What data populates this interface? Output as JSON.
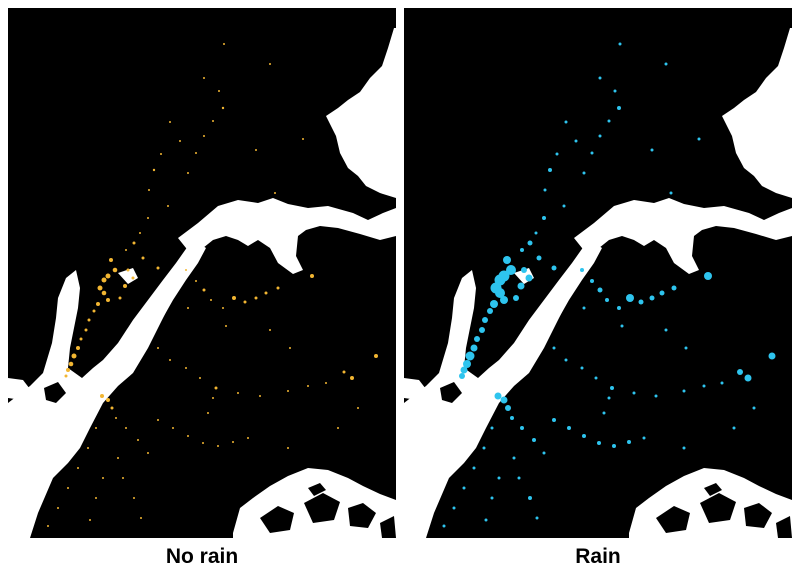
{
  "panels": [
    {
      "id": "no-rain",
      "label": "No rain",
      "dot_color": "#f2b632"
    },
    {
      "id": "rain",
      "label": "Rain",
      "dot_color": "#2ec4ee"
    }
  ],
  "colors": {
    "water": "#ffffff",
    "land": "#000000"
  }
}
